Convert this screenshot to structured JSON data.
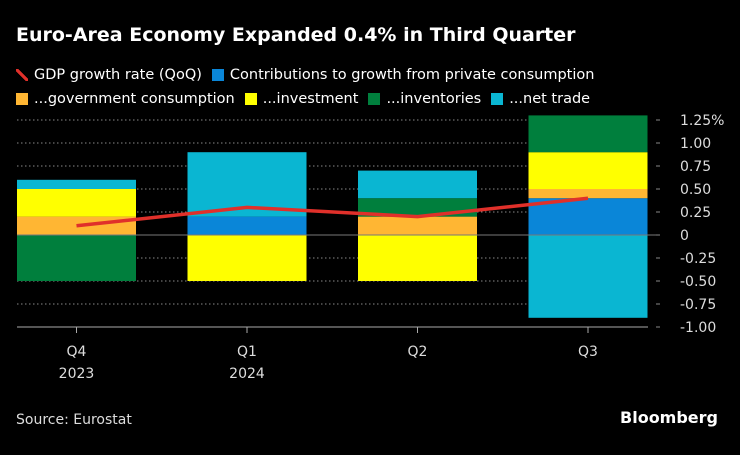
{
  "title": "Euro-Area Economy Expanded 0.4% in Third Quarter",
  "source": "Source: Eurostat",
  "logo": "Bloomberg",
  "chart_data": {
    "type": "bar",
    "stacked": true,
    "title": "Euro-Area Economy Expanded 0.4% in Third Quarter",
    "categories": [
      "Q4",
      "Q1",
      "Q2",
      "Q3"
    ],
    "category_years": [
      "2023",
      "2024",
      "",
      ""
    ],
    "ylim": [
      -1.0,
      1.25
    ],
    "yticks": [
      1.25,
      1.0,
      0.75,
      0.5,
      0.25,
      0,
      -0.25,
      -0.5,
      -0.75,
      -1.0
    ],
    "ytick_labels": [
      "1.25%",
      "1.00",
      "0.75",
      "0.50",
      "0.25",
      "0",
      "-0.25",
      "-0.50",
      "-0.75",
      "-1.00"
    ],
    "grid": true,
    "legend_position": "top",
    "line": {
      "name": "GDP growth rate (QoQ)",
      "color": "#e0302a",
      "values": [
        0.1,
        0.3,
        0.2,
        0.4
      ]
    },
    "series": [
      {
        "name": "Contributions to growth from private consumption",
        "color": "#0a86d8",
        "values": [
          0,
          0.2,
          0,
          0.4
        ]
      },
      {
        "name": "...government consumption",
        "color": "#ffb633",
        "values": [
          0.2,
          0,
          0.2,
          0.1
        ]
      },
      {
        "name": "...investment",
        "color": "#ffff00",
        "values": [
          0.3,
          -0.5,
          -0.5,
          0.4
        ]
      },
      {
        "name": "...inventories",
        "color": "#007f3d",
        "values": [
          -0.5,
          0,
          0.2,
          0.4
        ]
      },
      {
        "name": "...net trade",
        "color": "#0ab6d2",
        "values": [
          0.1,
          0.7,
          0.3,
          -0.9
        ]
      }
    ]
  }
}
